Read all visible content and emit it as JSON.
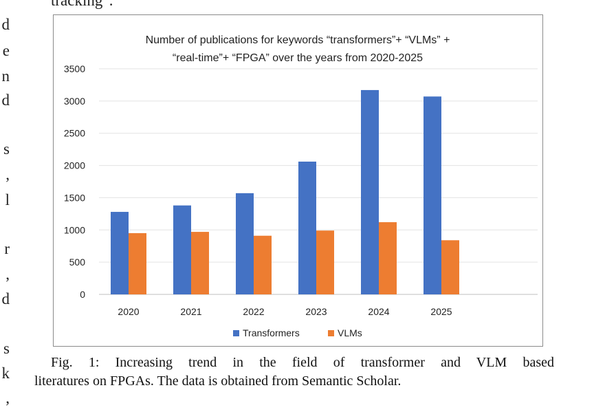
{
  "page": {
    "top_fragment": "tracking\".",
    "left_margin_fragments": [
      "d",
      "e",
      "n",
      "d",
      "s",
      ",",
      "l",
      "r",
      ",",
      "d",
      "s",
      "k",
      ","
    ],
    "caption_line1": "Fig. 1: Increasing trend in the field of transformer and VLM based",
    "caption_line2": "literatures on FPGAs. The data is obtained from Semantic Scholar."
  },
  "chart_data": {
    "type": "bar",
    "title_line1": "Number of publications for keywords “transformers”+ “VLMs” +",
    "title_line2": "“real-time”+ “FPGA” over the years from 2020-2025",
    "categories": [
      "2020",
      "2021",
      "2022",
      "2023",
      "2024",
      "2025"
    ],
    "series": [
      {
        "name": "Transformers",
        "color": "#4472C4",
        "values": [
          1280,
          1380,
          1570,
          2060,
          3170,
          3070
        ]
      },
      {
        "name": "VLMs",
        "color": "#ED7D31",
        "values": [
          950,
          970,
          910,
          990,
          1120,
          840
        ]
      }
    ],
    "ylim": [
      0,
      3500
    ],
    "yticks": [
      0,
      500,
      1000,
      1500,
      2000,
      2500,
      3000,
      3500
    ],
    "grid": true,
    "legend": "bottom"
  }
}
